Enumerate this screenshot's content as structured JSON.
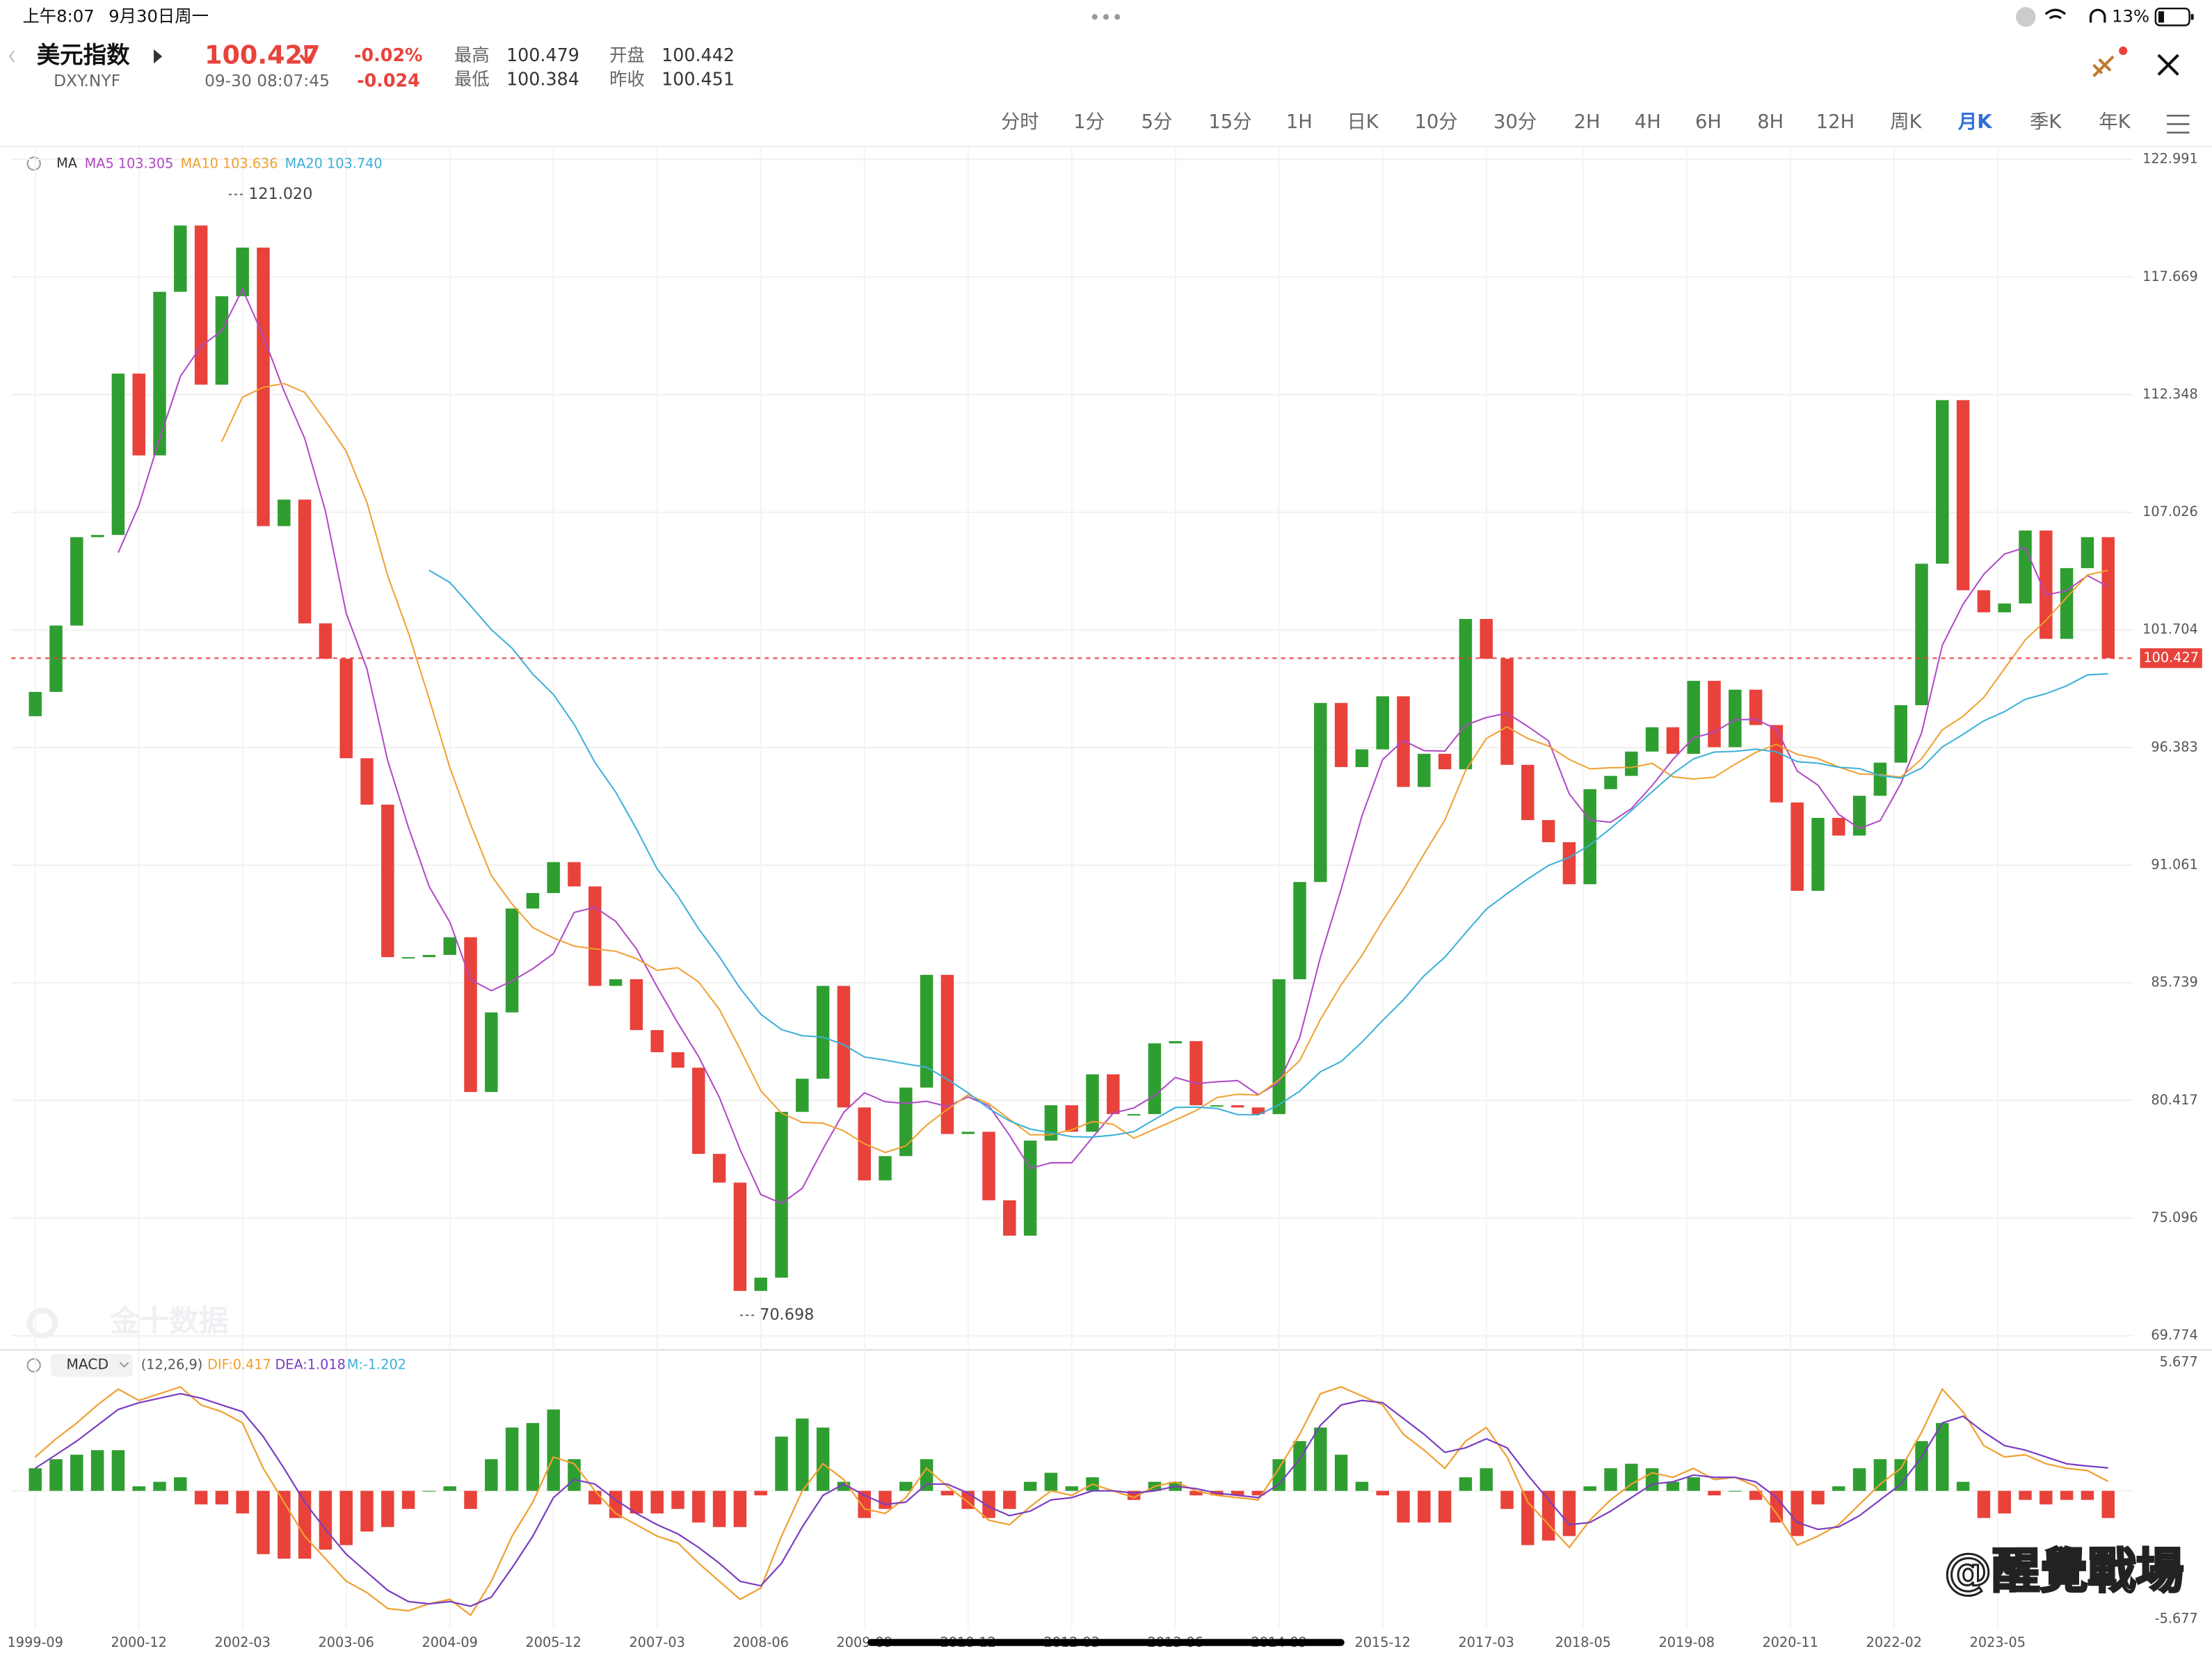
{
  "status_bar": {
    "time": "上午8:07",
    "date": "9月30日周一",
    "battery": "13%"
  },
  "header": {
    "name": "美元指数",
    "symbol": "DXY.NYF",
    "price": "100.427",
    "change_pct": "-0.02%",
    "change": "-0.024",
    "timestamp": "09-30 08:07:45",
    "stats": [
      {
        "label": "最高",
        "value": "100.479"
      },
      {
        "label": "最低",
        "value": "100.384"
      },
      {
        "label": "开盘",
        "value": "100.442"
      },
      {
        "label": "昨收",
        "value": "100.451"
      }
    ]
  },
  "timeframes": {
    "items": [
      "分时",
      "1分",
      "5分",
      "15分",
      "1H",
      "日K",
      "10分",
      "30分",
      "2H",
      "4H",
      "6H",
      "8H",
      "12H",
      "周K",
      "月K",
      "季K",
      "年K"
    ],
    "active": "月K"
  },
  "watermarks": {
    "brand": "金十数据",
    "user": "@醒覺戰場"
  },
  "chart_data": [
    {
      "type": "candlestick",
      "up_color": "#2f9e31",
      "down_color": "#e8423b",
      "x": [
        "1999-09",
        "1999-12",
        "2000-03",
        "2000-06",
        "2000-09",
        "2000-12",
        "2001-03",
        "2001-06",
        "2001-09",
        "2001-12",
        "2002-03",
        "2002-06",
        "2002-09",
        "2002-12",
        "2003-03",
        "2003-06",
        "2003-09",
        "2003-12",
        "2004-03",
        "2004-06",
        "2004-09",
        "2004-12",
        "2005-03",
        "2005-06",
        "2005-09",
        "2005-12",
        "2006-03",
        "2006-06",
        "2006-09",
        "2006-12",
        "2007-03",
        "2007-06",
        "2007-09",
        "2007-12",
        "2008-03",
        "2008-06",
        "2008-09",
        "2008-12",
        "2009-03",
        "2009-06",
        "2009-09",
        "2009-12",
        "2010-03",
        "2010-06",
        "2010-09",
        "2010-12",
        "2011-03",
        "2011-06",
        "2011-09",
        "2011-12",
        "2012-03",
        "2012-06",
        "2012-09",
        "2012-12",
        "2013-03",
        "2013-06",
        "2013-09",
        "2013-12",
        "2014-03",
        "2014-06",
        "2014-09",
        "2014-12",
        "2015-03",
        "2015-06",
        "2015-09",
        "2015-12",
        "2016-03",
        "2016-06",
        "2016-09",
        "2016-12",
        "2017-03",
        "2017-06",
        "2017-09",
        "2017-12",
        "2018-03",
        "2018-06",
        "2018-09",
        "2018-12",
        "2019-03",
        "2019-06",
        "2019-09",
        "2019-12",
        "2020-03",
        "2020-06",
        "2020-09",
        "2020-12",
        "2021-03",
        "2021-06",
        "2021-09",
        "2021-12",
        "2022-03",
        "2022-06",
        "2022-09",
        "2022-12",
        "2023-03",
        "2023-06",
        "2023-09",
        "2023-12",
        "2024-03",
        "2024-06",
        "2024-09"
      ],
      "open": [
        97.8,
        98.9,
        101.9,
        105.9,
        106.0,
        113.3,
        109.6,
        117.0,
        120.0,
        112.8,
        116.8,
        119.0,
        106.4,
        107.6,
        102.0,
        100.4,
        95.9,
        93.8,
        86.9,
        86.9,
        87.0,
        87.8,
        80.8,
        84.4,
        89.1,
        89.8,
        91.2,
        90.1,
        85.6,
        85.9,
        83.6,
        82.6,
        81.9,
        78.0,
        76.7,
        71.8,
        72.4,
        79.9,
        81.4,
        85.6,
        80.1,
        76.8,
        77.9,
        81.0,
        86.1,
        78.9,
        79.0,
        75.9,
        74.3,
        78.6,
        80.2,
        79.0,
        81.6,
        79.8,
        79.8,
        83.0,
        83.1,
        80.2,
        80.2,
        80.1,
        79.8,
        85.9,
        90.3,
        98.4,
        95.5,
        96.3,
        98.7,
        94.6,
        96.1,
        95.4,
        102.2,
        100.4,
        95.6,
        93.1,
        92.1,
        90.2,
        94.5,
        95.1,
        96.2,
        97.3,
        96.1,
        99.4,
        96.4,
        99.0,
        97.4,
        93.9,
        89.9,
        93.2,
        92.4,
        94.2,
        95.7,
        98.3,
        104.7,
        112.1,
        103.5,
        102.5,
        102.9,
        106.2,
        101.3,
        104.5,
        105.9
      ],
      "close": [
        98.9,
        101.9,
        105.9,
        106.0,
        113.3,
        109.6,
        117.0,
        120.0,
        112.8,
        116.8,
        119.0,
        106.4,
        107.6,
        102.0,
        100.4,
        95.9,
        93.8,
        86.9,
        86.9,
        87.0,
        87.8,
        80.8,
        84.4,
        89.1,
        89.8,
        91.2,
        90.1,
        85.6,
        85.9,
        83.6,
        82.6,
        81.9,
        78.0,
        76.7,
        71.8,
        72.4,
        79.9,
        81.4,
        85.6,
        80.1,
        76.8,
        77.9,
        81.0,
        86.1,
        78.9,
        79.0,
        75.9,
        74.3,
        78.6,
        80.2,
        79.0,
        81.6,
        79.8,
        79.8,
        83.0,
        83.1,
        80.2,
        80.2,
        80.1,
        79.8,
        85.9,
        90.3,
        98.4,
        95.5,
        96.3,
        98.7,
        94.6,
        96.1,
        95.4,
        102.2,
        100.4,
        95.6,
        93.1,
        92.1,
        90.2,
        94.5,
        95.1,
        96.2,
        97.3,
        96.1,
        99.4,
        96.4,
        99.0,
        97.4,
        93.9,
        89.9,
        93.2,
        92.4,
        94.2,
        95.7,
        98.3,
        104.7,
        112.1,
        103.5,
        102.5,
        102.9,
        106.2,
        101.3,
        104.5,
        105.9,
        100.427
      ],
      "ylim": [
        69.774,
        122.991
      ],
      "yticks": [
        122.991,
        117.669,
        112.348,
        107.026,
        101.704,
        96.383,
        91.061,
        85.739,
        80.417,
        75.096,
        69.774
      ],
      "xticks": [
        "1999-09",
        "2000-12",
        "2002-03",
        "2003-06",
        "2004-09",
        "2005-12",
        "2007-03",
        "2008-06",
        "2009-09",
        "2010-12",
        "2012-03",
        "2013-06",
        "2014-09",
        "2015-12",
        "2017-03",
        "2018-05",
        "2019-08",
        "2020-11",
        "2022-02",
        "2023-05"
      ],
      "grid": true,
      "legend": {
        "title": "MA",
        "items": [
          {
            "name": "MA5",
            "value": 103.305,
            "color": "#b049c6"
          },
          {
            "name": "MA10",
            "value": 103.636,
            "color": "#f0a030"
          },
          {
            "name": "MA20",
            "value": 103.74,
            "value_label": "103.740",
            "color": "#3ab0d8"
          }
        ]
      },
      "annotations": [
        {
          "x": "2002-01",
          "value": 121.02,
          "label": "121.020"
        },
        {
          "x": "2008-03",
          "value": 70.698,
          "label": "70.698"
        }
      ],
      "last_price": 100.427
    },
    {
      "type": "macd",
      "title": "MACD",
      "params": "(12,26,9)",
      "legend_labels": [
        "DIF:0.417",
        "DEA:1.018",
        "M:-1.202"
      ],
      "series": [
        {
          "name": "DIF",
          "color": "#f0a030",
          "values": [
            1.5,
            2.3,
            3.0,
            3.8,
            4.5,
            4.0,
            4.3,
            4.6,
            3.8,
            3.5,
            3.0,
            1.0,
            -0.5,
            -2.0,
            -3.0,
            -4.0,
            -4.5,
            -5.2,
            -5.3,
            -5.0,
            -4.8,
            -5.5,
            -4.0,
            -2.0,
            -0.5,
            1.5,
            1.2,
            0.0,
            -1.0,
            -1.5,
            -2.0,
            -2.3,
            -3.2,
            -4.0,
            -4.8,
            -4.3,
            -2.0,
            0.0,
            1.2,
            0.5,
            -0.8,
            -1.0,
            -0.3,
            1.0,
            0.2,
            -0.5,
            -1.3,
            -1.5,
            -0.7,
            0.0,
            -0.2,
            0.3,
            0.0,
            -0.3,
            0.2,
            0.4,
            0.0,
            -0.2,
            -0.3,
            -0.4,
            1.0,
            2.5,
            4.3,
            4.6,
            4.2,
            3.8,
            2.5,
            1.8,
            1.0,
            2.2,
            2.8,
            1.5,
            -0.5,
            -1.5,
            -2.5,
            -1.3,
            -0.4,
            0.3,
            0.8,
            0.6,
            1.0,
            0.5,
            0.6,
            0.2,
            -1.0,
            -2.4,
            -2.0,
            -1.5,
            -0.6,
            0.3,
            1.0,
            2.6,
            4.5,
            3.5,
            2.0,
            1.5,
            1.6,
            1.2,
            1.0,
            0.9,
            0.417
          ]
        },
        {
          "name": "DEA",
          "color": "#7b3fc0",
          "values": [
            1.0,
            1.6,
            2.2,
            2.9,
            3.6,
            3.9,
            4.1,
            4.3,
            4.1,
            3.8,
            3.5,
            2.4,
            1.0,
            -0.5,
            -1.7,
            -2.8,
            -3.6,
            -4.4,
            -4.9,
            -5.0,
            -4.9,
            -5.1,
            -4.7,
            -3.4,
            -2.0,
            -0.3,
            0.5,
            0.3,
            -0.4,
            -1.0,
            -1.5,
            -1.9,
            -2.5,
            -3.2,
            -4.0,
            -4.2,
            -3.2,
            -1.6,
            -0.2,
            0.3,
            -0.2,
            -0.6,
            -0.5,
            0.3,
            0.3,
            -0.1,
            -0.7,
            -1.1,
            -0.9,
            -0.4,
            -0.3,
            0.0,
            0.0,
            -0.1,
            0.0,
            0.2,
            0.1,
            -0.1,
            -0.2,
            -0.3,
            0.3,
            1.4,
            2.9,
            3.8,
            4.0,
            3.9,
            3.2,
            2.5,
            1.7,
            1.9,
            2.3,
            1.9,
            0.7,
            -0.4,
            -1.5,
            -1.4,
            -0.9,
            -0.3,
            0.3,
            0.4,
            0.7,
            0.6,
            0.6,
            0.4,
            -0.3,
            -1.4,
            -1.7,
            -1.6,
            -1.1,
            -0.4,
            0.3,
            1.5,
            3.0,
            3.3,
            2.6,
            2.0,
            1.8,
            1.5,
            1.2,
            1.1,
            1.018
          ]
        }
      ],
      "histogram": {
        "name": "M",
        "up_color": "#2f9e31",
        "down_color": "#e8423b",
        "values": [
          1.0,
          1.4,
          1.6,
          1.8,
          1.8,
          0.2,
          0.4,
          0.6,
          -0.6,
          -0.6,
          -1.0,
          -2.8,
          -3.0,
          -3.0,
          -2.6,
          -2.4,
          -1.8,
          -1.6,
          -0.8,
          0.0,
          0.2,
          -0.8,
          1.4,
          2.8,
          3.0,
          3.6,
          1.4,
          -0.6,
          -1.2,
          -1.0,
          -1.0,
          -0.8,
          -1.4,
          -1.6,
          -1.6,
          -0.2,
          2.4,
          3.2,
          2.8,
          0.4,
          -1.2,
          -0.8,
          0.4,
          1.4,
          -0.2,
          -0.8,
          -1.2,
          -0.8,
          0.4,
          0.8,
          0.2,
          0.6,
          0.0,
          -0.4,
          0.4,
          0.4,
          -0.2,
          -0.2,
          -0.2,
          -0.2,
          1.4,
          2.2,
          2.8,
          1.6,
          0.4,
          -0.2,
          -1.4,
          -1.4,
          -1.4,
          0.6,
          1.0,
          -0.8,
          -2.4,
          -2.2,
          -2.0,
          0.2,
          1.0,
          1.2,
          1.0,
          0.4,
          0.6,
          -0.2,
          0.0,
          -0.4,
          -1.4,
          -2.0,
          -0.6,
          0.2,
          1.0,
          1.4,
          1.4,
          2.2,
          3.0,
          0.4,
          -1.2,
          -1.0,
          -0.4,
          -0.6,
          -0.4,
          -0.4,
          -1.202
        ]
      },
      "ylim": [
        -5.677,
        5.677
      ],
      "yticks": [
        5.677,
        -5.677
      ]
    }
  ]
}
